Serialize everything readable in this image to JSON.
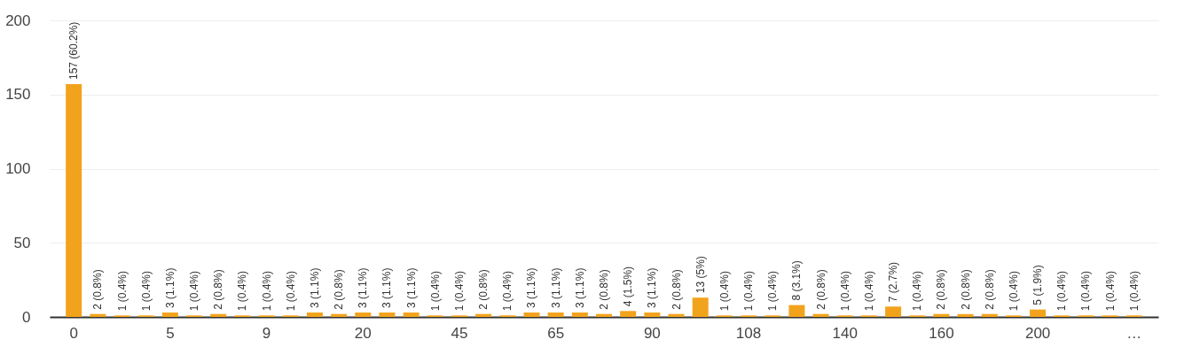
{
  "chart_data": {
    "type": "bar",
    "categories": [
      "0",
      null,
      null,
      null,
      "5",
      null,
      null,
      null,
      "9",
      null,
      null,
      null,
      "20",
      null,
      null,
      null,
      "45",
      null,
      null,
      null,
      "65",
      null,
      null,
      null,
      "90",
      null,
      null,
      null,
      "108",
      null,
      null,
      null,
      "140",
      null,
      null,
      null,
      "160",
      null,
      null,
      null,
      "200",
      null,
      null,
      null,
      "…"
    ],
    "values": [
      157,
      2,
      1,
      1,
      3,
      1,
      2,
      1,
      1,
      1,
      3,
      2,
      3,
      3,
      3,
      1,
      1,
      2,
      1,
      3,
      3,
      3,
      2,
      4,
      3,
      2,
      13,
      1,
      1,
      1,
      8,
      2,
      1,
      1,
      7,
      1,
      2,
      2,
      2,
      1,
      5,
      1,
      1,
      1,
      1
    ],
    "value_labels": [
      "157 (60.2%)",
      "2 (0.8%)",
      "1 (0.4%)",
      "1 (0.4%)",
      "3 (1.1%)",
      "1 (0.4%)",
      "2 (0.8%)",
      "1 (0.4%)",
      "1 (0.4%)",
      "1 (0.4%)",
      "3 (1.1%)",
      "2 (0.8%)",
      "3 (1.1%)",
      "3 (1.1%)",
      "3 (1.1%)",
      "1 (0.4%)",
      "1 (0.4%)",
      "2 (0.8%)",
      "1 (0.4%)",
      "3 (1.1%)",
      "3 (1.1%)",
      "3 (1.1%)",
      "2 (0.8%)",
      "4 (1.5%)",
      "3 (1.1%)",
      "2 (0.8%)",
      "13 (5%)",
      "1 (0.4%)",
      "1 (0.4%)",
      "1 (0.4%)",
      "8 (3.1%)",
      "2 (0.8%)",
      "1 (0.4%)",
      "1 (0.4%)",
      "7 (2.7%)",
      "1 (0.4%)",
      "2 (0.8%)",
      "2 (0.8%)",
      "2 (0.8%)",
      "1 (0.4%)",
      "5 (1.9%)",
      "1 (0.4%)",
      "1 (0.4%)",
      "1 (0.4%)",
      "1 (0.4%)"
    ],
    "color": "#f2a31c",
    "ylim": [
      0,
      200
    ],
    "yticks": [
      0,
      50,
      100,
      150,
      200
    ],
    "grid": "y"
  }
}
